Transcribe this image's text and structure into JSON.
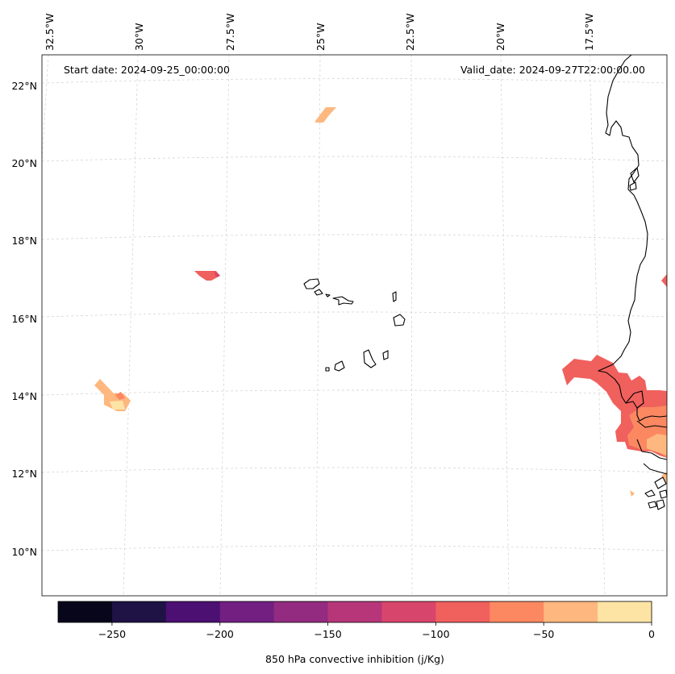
{
  "annotations": {
    "start_date": "Start date: 2024-09-25_00:00:00",
    "valid_date": "Valid_date: 2024-09-27T22:00:00.00"
  },
  "longitude_labels": [
    "32.5°W",
    "30°W",
    "27.5°W",
    "25°W",
    "22.5°W",
    "20°W",
    "17.5°W"
  ],
  "latitude_labels": [
    "22°N",
    "20°N",
    "18°N",
    "16°N",
    "14°N",
    "12°N",
    "10°N"
  ],
  "colorbar": {
    "label": "850 hPa convective inhibition (j/Kg)",
    "tick_labels": [
      "−250",
      "−200",
      "−150",
      "−100",
      "−50",
      "0"
    ],
    "levels": [
      -275,
      -250,
      -225,
      -200,
      -175,
      -150,
      -125,
      -100,
      -75,
      -50,
      -25,
      0
    ],
    "colors": [
      "#07061b",
      "#1f1245",
      "#4c0f72",
      "#721f81",
      "#932b80",
      "#b63679",
      "#d8456c",
      "#f0605d",
      "#fb8861",
      "#feb77e",
      "#fde4a5"
    ]
  },
  "colors": {
    "coast": "#000000",
    "grid": "#cccccc",
    "frame": "#999999"
  }
}
